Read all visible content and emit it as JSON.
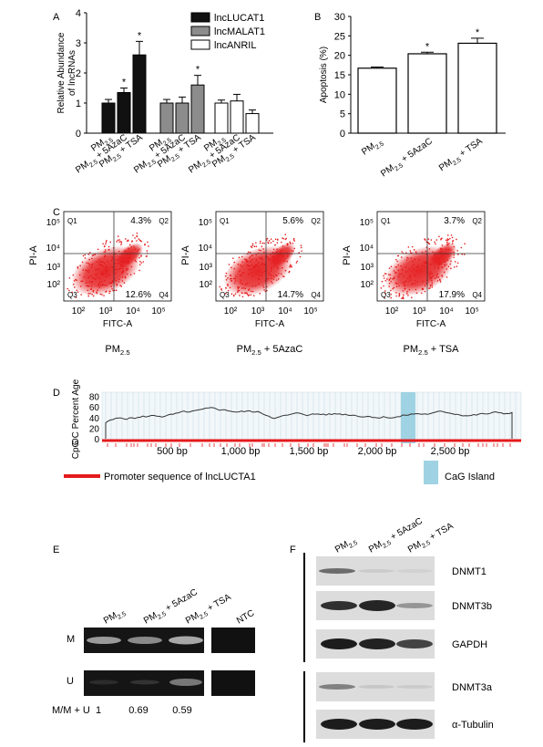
{
  "panels": {
    "a": "A",
    "b": "B",
    "c": "C",
    "d": "D",
    "e": "E",
    "f": "F"
  },
  "chart_data": [
    {
      "panel": "A",
      "type": "bar",
      "ylabel": "Relative Abundance of lncRNAs",
      "ylim": [
        0,
        4
      ],
      "yticks": [
        "0",
        "1",
        "2",
        "3",
        "4"
      ],
      "categories": [
        "PM2.5",
        "PM2.5 + 5AzaC",
        "PM2.5 + TSA"
      ],
      "series": [
        {
          "name": "lncLUCAT1",
          "color": "#111111",
          "values": [
            1.0,
            1.35,
            2.6
          ],
          "errors": [
            0.12,
            0.15,
            0.45
          ],
          "sig": [
            "",
            "*",
            "*"
          ]
        },
        {
          "name": "lncMALAT1",
          "color": "#8c8c8c",
          "values": [
            1.0,
            1.0,
            1.6
          ],
          "errors": [
            0.12,
            0.2,
            0.32
          ],
          "sig": [
            "",
            "",
            "*"
          ]
        },
        {
          "name": "lncANRIL",
          "color": "#ffffff",
          "values": [
            1.0,
            1.07,
            0.65
          ],
          "errors": [
            0.1,
            0.22,
            0.12
          ],
          "sig": [
            "",
            "",
            ""
          ]
        }
      ]
    },
    {
      "panel": "B",
      "type": "bar",
      "ylabel": "Apoptosis (%)",
      "ylim": [
        0,
        30
      ],
      "yticks": [
        "0",
        "5",
        "10",
        "15",
        "20",
        "25",
        "30"
      ],
      "categories": [
        "PM2.5",
        "PM2.5 + 5AzaC",
        "PM2.5 + TSA"
      ],
      "values": [
        16.7,
        20.4,
        23.1
      ],
      "errors": [
        0.3,
        0.4,
        1.3
      ],
      "sig": [
        "",
        "*",
        "*"
      ]
    },
    {
      "panel": "D",
      "type": "line",
      "ylabel_top": "OC Percent Age",
      "ylabel_bottom": "CpG",
      "yticks": [
        "0",
        "20",
        "40",
        "60",
        "80"
      ],
      "xticks": [
        "500 bp",
        "1,000 bp",
        "1,500 bp",
        "2,000 bp",
        "2,500 bp"
      ]
    }
  ],
  "panel_c": {
    "xlabel": "FITC-A",
    "ylabel": "PI-A",
    "ticks": [
      "10²",
      "10³",
      "10⁴",
      "10⁵"
    ],
    "quadrants": [
      "Q1",
      "Q2",
      "Q3",
      "Q4"
    ],
    "plots": [
      {
        "label": "PM2.5",
        "q2": "4.3%",
        "q4": "12.6%"
      },
      {
        "label": "PM2.5 + 5AzaC",
        "q2": "5.6%",
        "q4": "14.7%"
      },
      {
        "label": "PM2.5 + TSA",
        "q2": "3.7%",
        "q4": "17.9%"
      }
    ]
  },
  "panel_d": {
    "promoter_legend": "Promoter sequence of lncLUCTA1",
    "island_legend": "CaG Island"
  },
  "panel_e": {
    "lanes": [
      "PM2.5",
      "PM2.5 + 5AzaC",
      "PM2.5 + TSA",
      "NTC"
    ],
    "rows": [
      "M",
      "U"
    ],
    "ratio_label": "M/M + U",
    "ratios": [
      "1",
      "0.69",
      "0.59"
    ]
  },
  "panel_f": {
    "lanes": [
      "PM2.5",
      "PM2.5 + 5AzaC",
      "PM2.5 + TSA"
    ],
    "proteins": [
      "DNMT1",
      "DNMT3b",
      "GAPDH",
      "DNMT3a",
      "α-Tubulin"
    ]
  },
  "colors": {
    "dots": "#e41a1c",
    "promoter": "#e41a1c",
    "island": "#9fd3e3"
  }
}
